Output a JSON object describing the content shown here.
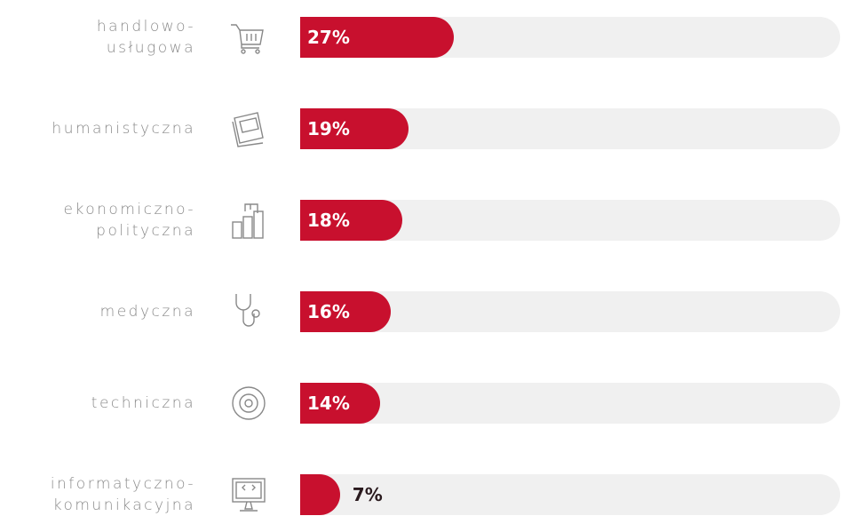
{
  "chart_data": {
    "type": "bar",
    "orientation": "horizontal",
    "categories": [
      "handlowo-\nusługowa",
      "humanistyczna",
      "ekonomiczno-\npolityczna",
      "medyczna",
      "techniczna",
      "informatyczno-\nkomunikacyjna"
    ],
    "values": [
      27,
      19,
      18,
      16,
      14,
      7
    ],
    "value_labels": [
      "27%",
      "19%",
      "18%",
      "16%",
      "14%",
      "7%"
    ],
    "color": "#c8102e",
    "track_color": "#f0f0f0",
    "xlim": [
      0,
      95
    ]
  }
}
